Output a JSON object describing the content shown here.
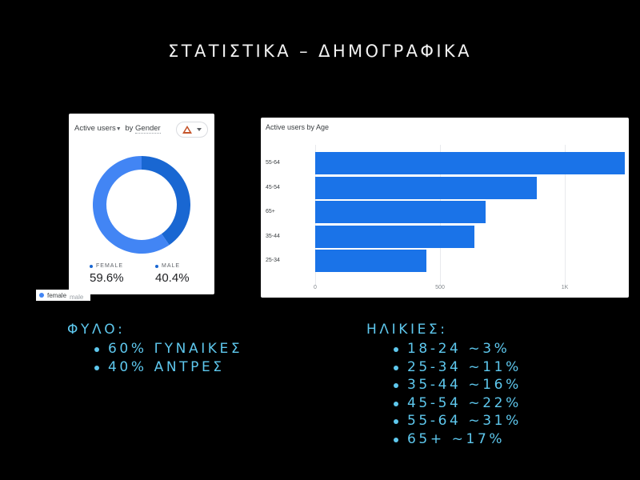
{
  "slide": {
    "title": "ΣΤΑΤΙΣΤΙΚΑ – ΔΗΜΟΓΡΑΦΙΚΑ"
  },
  "gender_card": {
    "metric": "Active users",
    "by": "by",
    "dimension": "Gender",
    "warning_icon": "warning-triangle-icon",
    "legend": [
      {
        "label": "FEMALE",
        "value": "59.6%",
        "color": "#4285f4"
      },
      {
        "label": "MALE",
        "value": "40.4%",
        "color": "#1967d2"
      }
    ],
    "overlay_legend": {
      "female": "female",
      "male": "male"
    }
  },
  "age_card": {
    "title": "Active users by Age"
  },
  "gender_section": {
    "heading": "ΦΥΛΟ:",
    "items": [
      "60% ΓΥΝΑΙΚΕΣ",
      "40% ΑΝΤΡΕΣ"
    ]
  },
  "age_section": {
    "heading": "ΗΛΙΚΙΕΣ:",
    "items": [
      "18-24 ~3%",
      "25-34 ~11%",
      "35-44 ~16%",
      "45-54 ~22%",
      "55-64 ~31%",
      "65+ ~17%"
    ]
  },
  "chart_data": [
    {
      "type": "pie",
      "title": "Active users by Gender",
      "categories": [
        "female",
        "male"
      ],
      "values": [
        59.6,
        40.4
      ],
      "colors": [
        "#4285f4",
        "#1967d2"
      ],
      "donut": true
    },
    {
      "type": "bar",
      "orientation": "horizontal",
      "title": "Active users by Age",
      "categories": [
        "55-64",
        "45-54",
        "65+",
        "35-44",
        "25-34"
      ],
      "values": [
        1240,
        888,
        683,
        638,
        446
      ],
      "xticks": [
        "0",
        "500",
        "1K"
      ],
      "xlim": [
        0,
        1250
      ],
      "grid": true,
      "color": "#1a73e8"
    }
  ]
}
